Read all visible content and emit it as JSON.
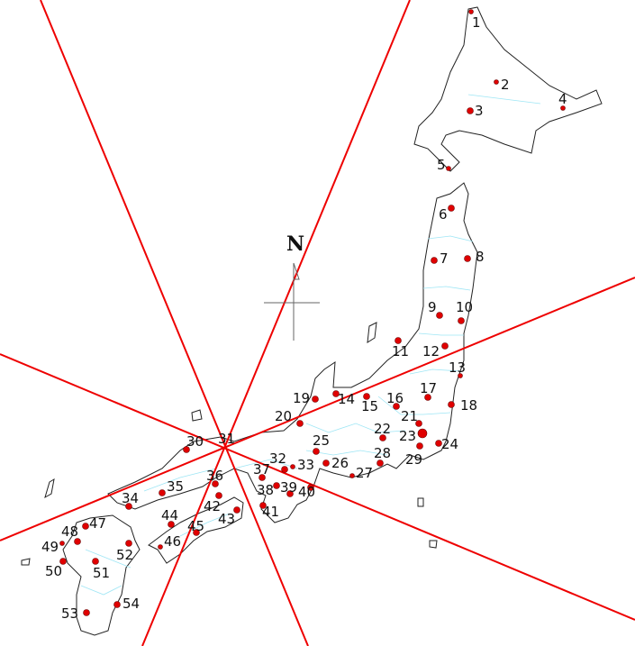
{
  "compass": {
    "label": "N"
  },
  "colors": {
    "ray": "#ee0000",
    "point": "#e00000",
    "highlight_point": "#2030d0",
    "coast": "#222222",
    "prefecture_border": "#9fe6f5"
  },
  "center_point": "31",
  "highlighted_point": "23",
  "points": [
    "1",
    "2",
    "3",
    "4",
    "5",
    "6",
    "7",
    "8",
    "9",
    "10",
    "11",
    "12",
    "13",
    "14",
    "15",
    "16",
    "17",
    "18",
    "19",
    "20",
    "21",
    "22",
    "23",
    "24",
    "25",
    "26",
    "27",
    "28",
    "29",
    "30",
    "31",
    "32",
    "33",
    "34",
    "35",
    "36",
    "37",
    "38",
    "39",
    "40",
    "41",
    "42",
    "43",
    "44",
    "45",
    "46",
    "47",
    "48",
    "49",
    "50",
    "51",
    "52",
    "53",
    "54"
  ]
}
